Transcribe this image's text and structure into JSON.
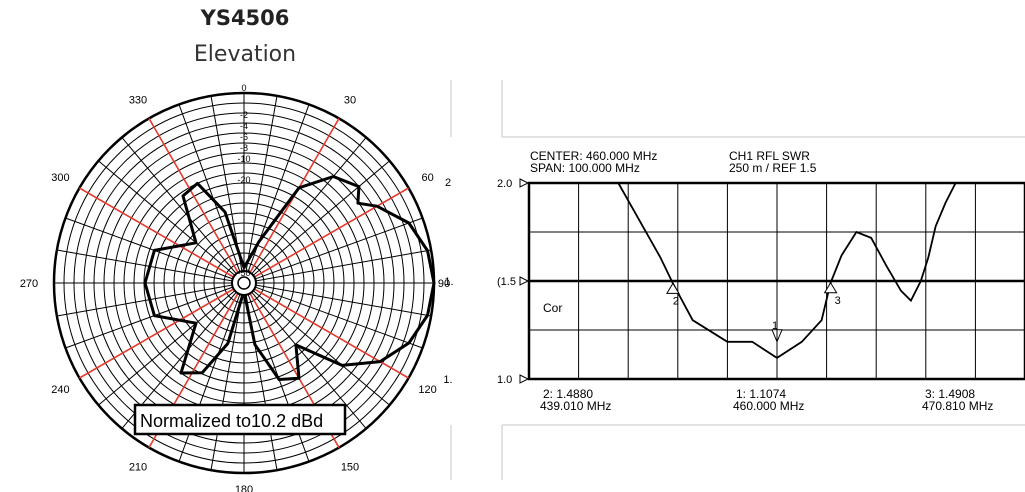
{
  "title": "YS4506",
  "subtitle": "Elevation",
  "chart_data": [
    {
      "type": "polar",
      "angle_labels": [
        {
          "angle": 0,
          "label": "0"
        },
        {
          "angle": 30,
          "label": "30"
        },
        {
          "angle": 60,
          "label": "60"
        },
        {
          "angle": 90,
          "label": "90"
        },
        {
          "angle": 120,
          "label": "120"
        },
        {
          "angle": 150,
          "label": "150"
        },
        {
          "angle": 180,
          "label": "180"
        },
        {
          "angle": 210,
          "label": "210"
        },
        {
          "angle": 240,
          "label": "240"
        },
        {
          "angle": 270,
          "label": "270"
        },
        {
          "angle": 300,
          "label": "300"
        },
        {
          "angle": 330,
          "label": "330"
        }
      ],
      "edge_labels": [
        "2",
        "1.",
        "1."
      ],
      "radial_labels": [
        "-2",
        "-4",
        "-6",
        "-8",
        "-10",
        "-20",
        "-50"
      ],
      "annotation": "Normalized to10.2 dBd",
      "gain_range_db": [
        -50,
        0
      ],
      "pattern": [
        {
          "deg": 0,
          "db": -48
        },
        {
          "deg": 20,
          "db": -40
        },
        {
          "deg": 30,
          "db": -22
        },
        {
          "deg": 40,
          "db": -14
        },
        {
          "deg": 50,
          "db": -11
        },
        {
          "deg": 55,
          "db": -14
        },
        {
          "deg": 60,
          "db": -10
        },
        {
          "deg": 70,
          "db": -4
        },
        {
          "deg": 80,
          "db": -1
        },
        {
          "deg": 90,
          "db": 0
        },
        {
          "deg": 100,
          "db": -1
        },
        {
          "deg": 110,
          "db": -4
        },
        {
          "deg": 120,
          "db": -9
        },
        {
          "deg": 130,
          "db": -17
        },
        {
          "deg": 140,
          "db": -30
        },
        {
          "deg": 150,
          "db": -22
        },
        {
          "deg": 160,
          "db": -24
        },
        {
          "deg": 170,
          "db": -35
        },
        {
          "deg": 180,
          "db": -50
        },
        {
          "deg": 195,
          "db": -35
        },
        {
          "deg": 205,
          "db": -25
        },
        {
          "deg": 215,
          "db": -22
        },
        {
          "deg": 230,
          "db": -35
        },
        {
          "deg": 250,
          "db": -26
        },
        {
          "deg": 270,
          "db": -25
        },
        {
          "deg": 290,
          "db": -26
        },
        {
          "deg": 310,
          "db": -35
        },
        {
          "deg": 325,
          "db": -23
        },
        {
          "deg": 335,
          "db": -22
        },
        {
          "deg": 345,
          "db": -32
        },
        {
          "deg": 360,
          "db": -48
        }
      ]
    },
    {
      "type": "line",
      "header": {
        "center": "CENTER: 460.000 MHz",
        "span": "SPAN: 100.000 MHz",
        "channel": "CH1 RFL   SWR",
        "scale": "250 m / REF 1.5"
      },
      "y_tick_labels": [
        "2.0",
        "1.5",
        "1.0"
      ],
      "side_label_prefix": "(",
      "trace_label": "Cor",
      "xlim": [
        410,
        510
      ],
      "ylim": [
        1.0,
        2.0
      ],
      "grid": true,
      "x": [
        428,
        436.5,
        439.01,
        443,
        450,
        455,
        460,
        465,
        469,
        470.81,
        473,
        476,
        479,
        482,
        485,
        487,
        489,
        490.5,
        492,
        494,
        496,
        497.8
      ],
      "y": [
        2.0,
        1.62,
        1.488,
        1.3,
        1.19,
        1.19,
        1.1074,
        1.19,
        1.3,
        1.4908,
        1.63,
        1.75,
        1.72,
        1.58,
        1.45,
        1.4,
        1.5,
        1.62,
        1.78,
        1.9,
        2.0,
        2.0
      ],
      "markers": [
        {
          "id": "1",
          "freq": 460.0,
          "value": 1.1074,
          "label_value": "1:  1.1074",
          "label_freq": "460.000 MHz"
        },
        {
          "id": "2",
          "freq": 439.01,
          "value": 1.488,
          "label_value": "2:  1.4880",
          "label_freq": "439.010 MHz"
        },
        {
          "id": "3",
          "freq": 470.81,
          "value": 1.4908,
          "label_value": "3:  1.4908",
          "label_freq": "470.810 MHz"
        }
      ]
    }
  ]
}
